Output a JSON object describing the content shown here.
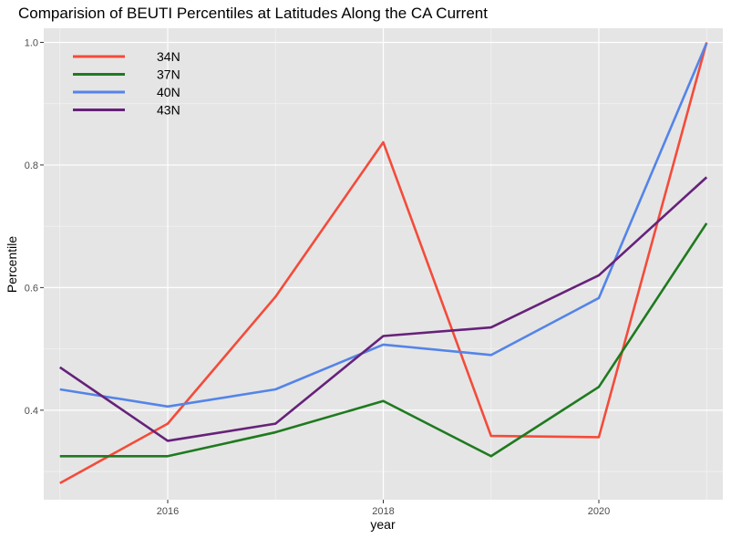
{
  "chart_data": {
    "type": "line",
    "title": "Comparision of BEUTI Percentiles at Latitudes Along the CA Current",
    "xlabel": "year",
    "ylabel": "Percentile",
    "x": [
      2015,
      2016,
      2017,
      2018,
      2019,
      2020,
      2021
    ],
    "xlim": [
      2014.85,
      2021.15
    ],
    "ylim": [
      0.254,
      1.023
    ],
    "x_ticks": [
      2016,
      2018,
      2020
    ],
    "x_tick_labels": [
      "2016",
      "2018",
      "2020"
    ],
    "y_ticks": [
      0.4,
      0.6,
      0.8,
      1.0
    ],
    "y_tick_labels": [
      "0.4",
      "0.6",
      "0.8",
      "1.0"
    ],
    "grid": true,
    "legend_position": "top-left",
    "colors": {
      "panel_background": "#e5e5e5",
      "grid_major": "#ffffff",
      "grid_minor": "#f2f2f2"
    },
    "series": [
      {
        "name": "34N",
        "color": "#f44b3a",
        "values": [
          0.281,
          0.378,
          0.585,
          0.837,
          0.358,
          0.356,
          1.0
        ]
      },
      {
        "name": "37N",
        "color": "#1f7a1f",
        "values": [
          0.325,
          0.325,
          0.364,
          0.415,
          0.325,
          0.438,
          0.705
        ]
      },
      {
        "name": "40N",
        "color": "#5484e8",
        "values": [
          0.434,
          0.406,
          0.434,
          0.507,
          0.49,
          0.583,
          0.999
        ]
      },
      {
        "name": "43N",
        "color": "#66227a",
        "values": [
          0.47,
          0.35,
          0.378,
          0.521,
          0.535,
          0.62,
          0.78
        ]
      }
    ]
  }
}
